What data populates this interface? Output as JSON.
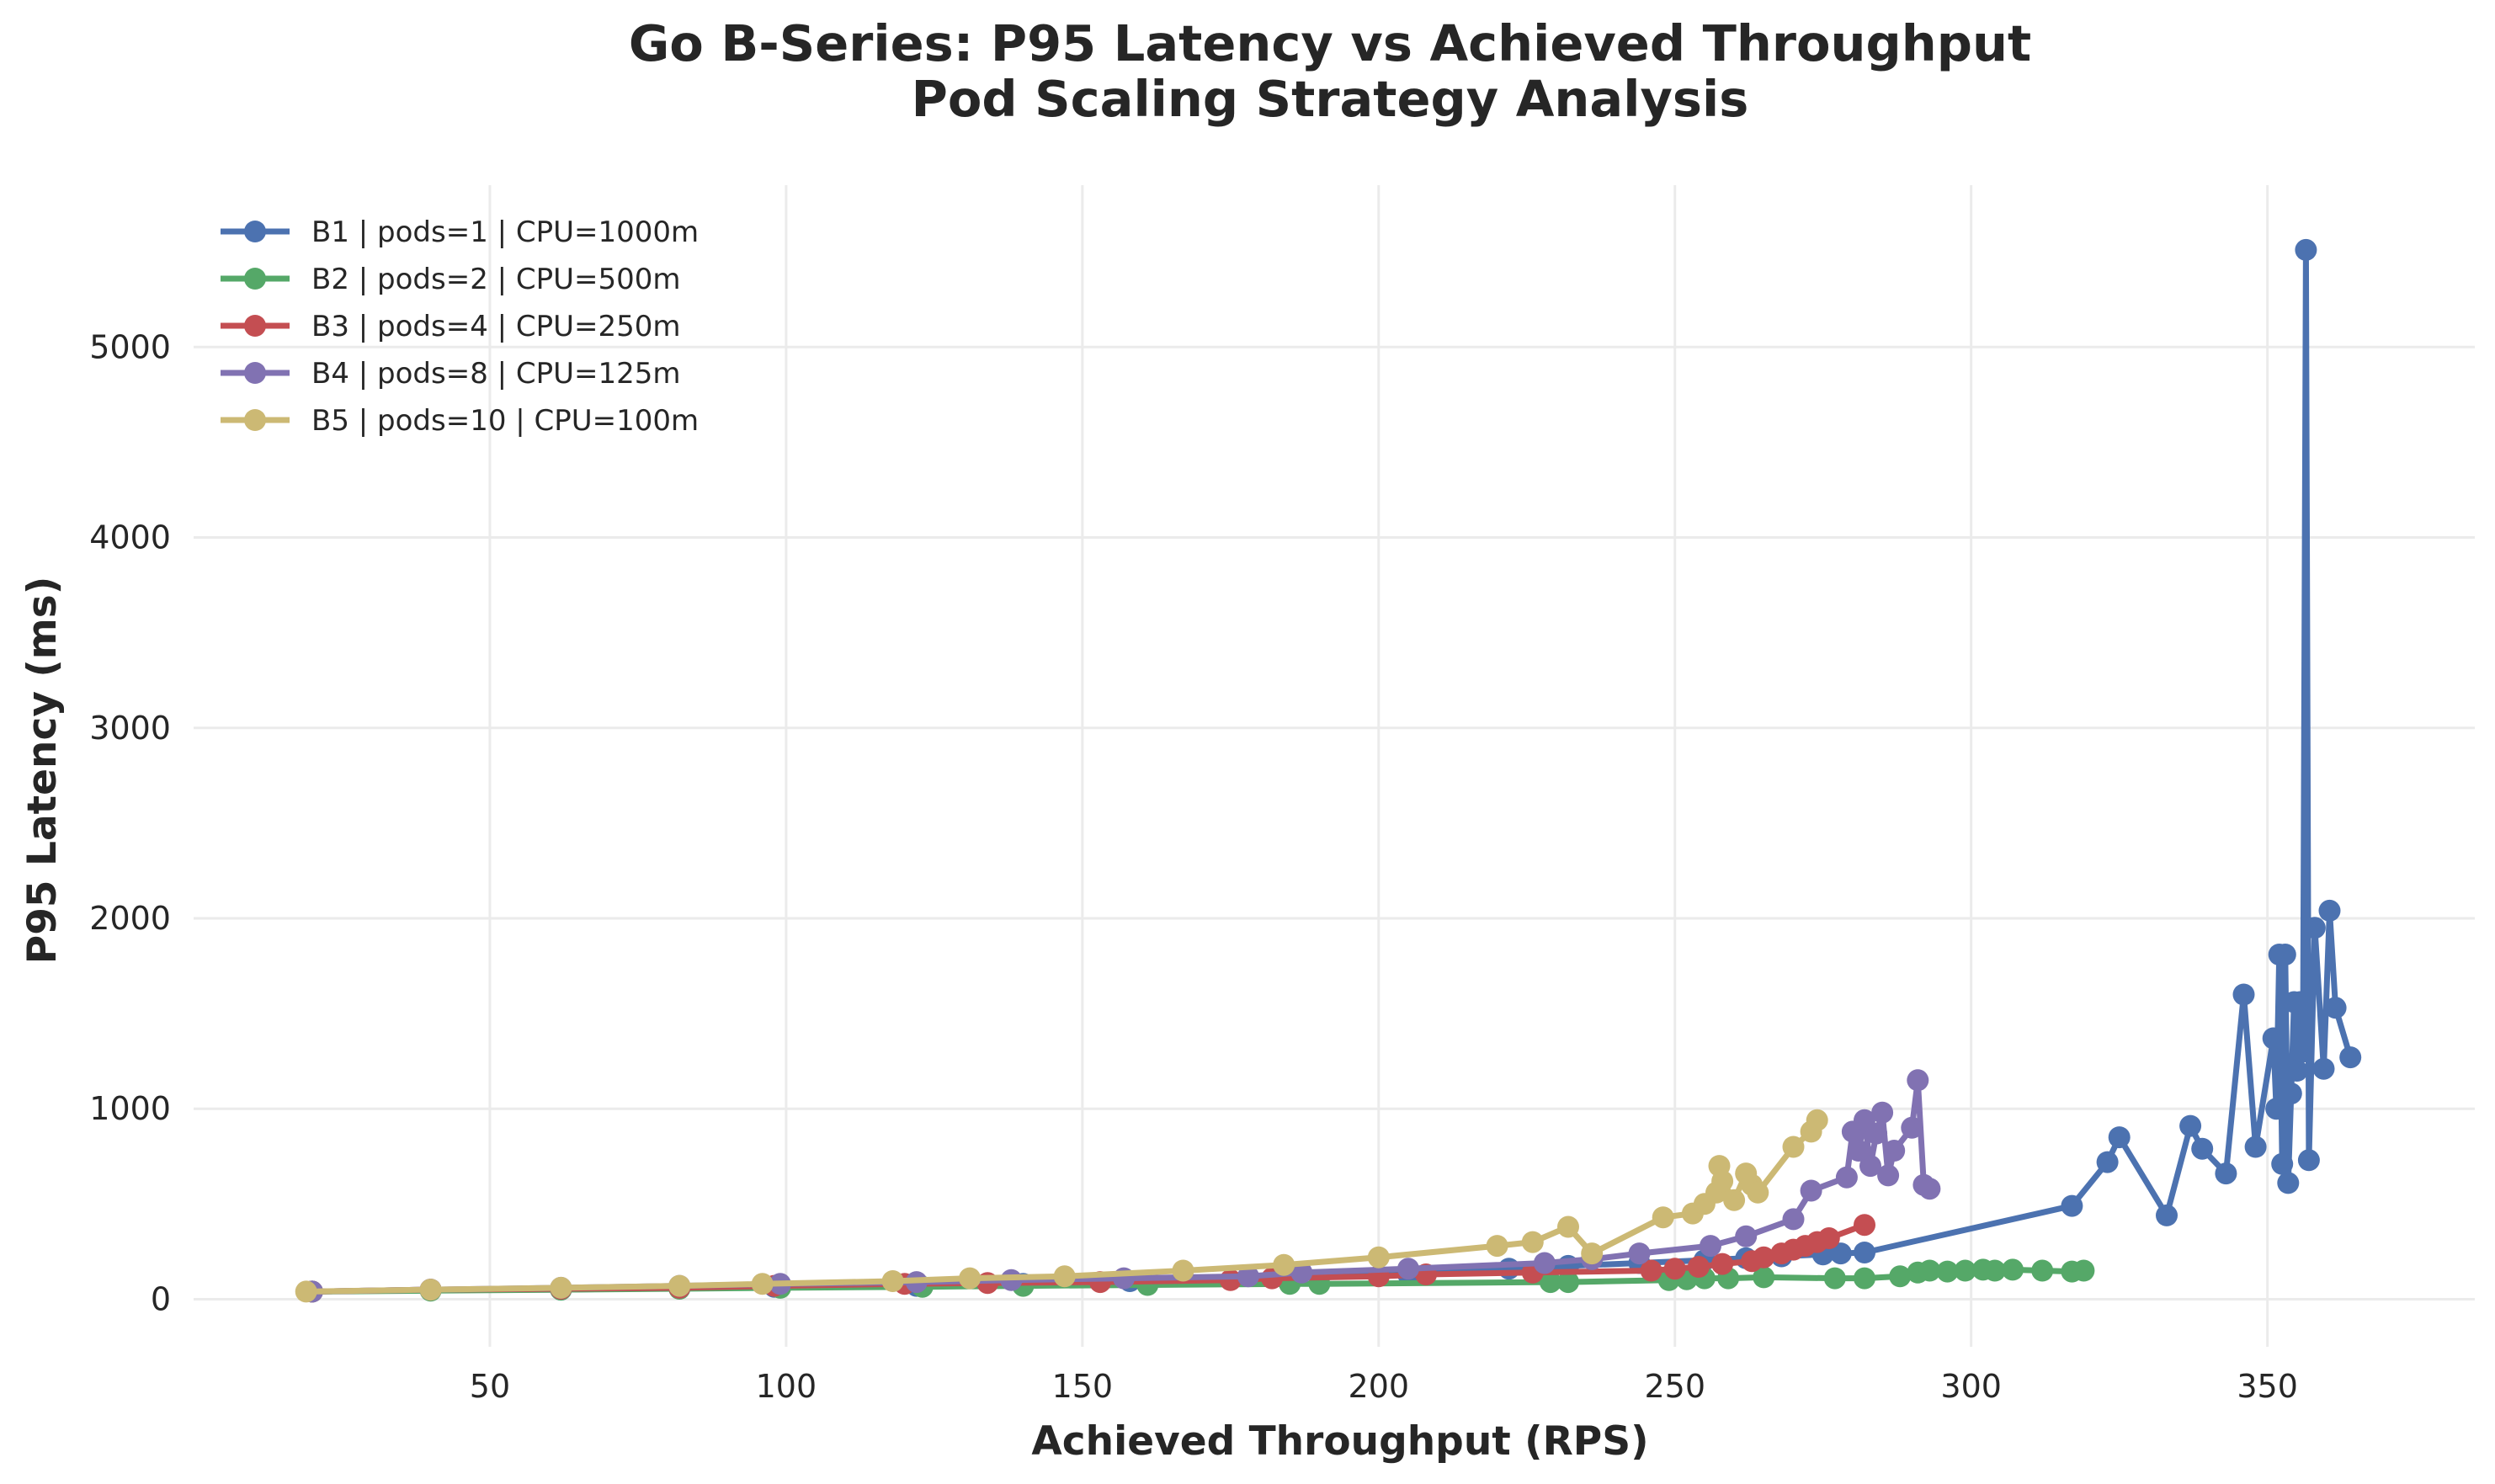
{
  "chart_data": {
    "type": "line",
    "title": "Go B-Series: P95 Latency vs Achieved Throughput",
    "subtitle": "Pod Scaling Strategy Analysis",
    "xlabel": "Achieved Throughput (RPS)",
    "ylabel": "P95 Latency (ms)",
    "xlim": [
      0,
      385
    ],
    "ylim": [
      -250,
      5850
    ],
    "xticks": [
      50,
      100,
      150,
      200,
      250,
      300,
      350
    ],
    "yticks": [
      0,
      1000,
      2000,
      3000,
      4000,
      5000
    ],
    "grid": true,
    "legend_position": "top-left",
    "series": [
      {
        "name": "B1 | pods=1 | CPU=1000m",
        "color": "#4C72B0",
        "points": [
          [
            20,
            40
          ],
          [
            40,
            50
          ],
          [
            62,
            50
          ],
          [
            82,
            60
          ],
          [
            98,
            65
          ],
          [
            122,
            70
          ],
          [
            140,
            80
          ],
          [
            158,
            95
          ],
          [
            185,
            110
          ],
          [
            205,
            130
          ],
          [
            222,
            160
          ],
          [
            232,
            175
          ],
          [
            244,
            190
          ],
          [
            255,
            205
          ],
          [
            262,
            215
          ],
          [
            268,
            225
          ],
          [
            275,
            235
          ],
          [
            278,
            240
          ],
          [
            282,
            245
          ],
          [
            317,
            490
          ],
          [
            323,
            720
          ],
          [
            325,
            850
          ],
          [
            333,
            440
          ],
          [
            337,
            910
          ],
          [
            339,
            790
          ],
          [
            343,
            660
          ],
          [
            346,
            1600
          ],
          [
            348,
            800
          ],
          [
            351,
            1370
          ],
          [
            351.5,
            1000
          ],
          [
            352,
            1810
          ],
          [
            352.5,
            710
          ],
          [
            353,
            1810
          ],
          [
            353.5,
            610
          ],
          [
            354,
            1080
          ],
          [
            354.5,
            1560
          ],
          [
            355,
            1200
          ],
          [
            355.5,
            1560
          ],
          [
            356,
            1300
          ],
          [
            356.5,
            5510
          ],
          [
            357,
            730
          ],
          [
            358,
            1950
          ],
          [
            359.5,
            1210
          ],
          [
            360.5,
            2040
          ],
          [
            361.5,
            1530
          ],
          [
            364,
            1270
          ]
        ]
      },
      {
        "name": "B2 | pods=2 | CPU=500m",
        "color": "#55A868",
        "points": [
          [
            20,
            40
          ],
          [
            40,
            45
          ],
          [
            62,
            50
          ],
          [
            82,
            55
          ],
          [
            99,
            60
          ],
          [
            123,
            65
          ],
          [
            140,
            70
          ],
          [
            161,
            75
          ],
          [
            185,
            80
          ],
          [
            190,
            80
          ],
          [
            229,
            90
          ],
          [
            232,
            90
          ],
          [
            249,
            100
          ],
          [
            252,
            105
          ],
          [
            255,
            110
          ],
          [
            259,
            110
          ],
          [
            265,
            115
          ],
          [
            277,
            110
          ],
          [
            282,
            110
          ],
          [
            288,
            120
          ],
          [
            291,
            140
          ],
          [
            293,
            150
          ],
          [
            296,
            145
          ],
          [
            299,
            150
          ],
          [
            302,
            155
          ],
          [
            304,
            150
          ],
          [
            307,
            155
          ],
          [
            312,
            150
          ],
          [
            317,
            145
          ],
          [
            319,
            150
          ]
        ]
      },
      {
        "name": "B3 | pods=4 | CPU=250m",
        "color": "#C44E52",
        "points": [
          [
            20,
            40
          ],
          [
            40,
            50
          ],
          [
            62,
            55
          ],
          [
            82,
            60
          ],
          [
            98,
            70
          ],
          [
            120,
            80
          ],
          [
            134,
            85
          ],
          [
            153,
            90
          ],
          [
            175,
            100
          ],
          [
            182,
            110
          ],
          [
            200,
            120
          ],
          [
            208,
            130
          ],
          [
            226,
            140
          ],
          [
            246,
            150
          ],
          [
            250,
            160
          ],
          [
            254,
            170
          ],
          [
            258,
            185
          ],
          [
            263,
            200
          ],
          [
            265,
            220
          ],
          [
            268,
            240
          ],
          [
            270,
            260
          ],
          [
            272,
            280
          ],
          [
            274,
            300
          ],
          [
            276,
            320
          ],
          [
            282,
            390
          ]
        ]
      },
      {
        "name": "B4 | pods=8 | CPU=125m",
        "color": "#8172B2",
        "points": [
          [
            20,
            40
          ],
          [
            40,
            50
          ],
          [
            62,
            60
          ],
          [
            82,
            70
          ],
          [
            99,
            80
          ],
          [
            122,
            90
          ],
          [
            138,
            100
          ],
          [
            157,
            110
          ],
          [
            178,
            120
          ],
          [
            187,
            140
          ],
          [
            205,
            160
          ],
          [
            228,
            190
          ],
          [
            236,
            210
          ],
          [
            244,
            240
          ],
          [
            256,
            280
          ],
          [
            262,
            330
          ],
          [
            270,
            420
          ],
          [
            273,
            570
          ],
          [
            279,
            640
          ],
          [
            280,
            880
          ],
          [
            281,
            780
          ],
          [
            282,
            940
          ],
          [
            283,
            700
          ],
          [
            284,
            870
          ],
          [
            285,
            980
          ],
          [
            286,
            650
          ],
          [
            287,
            780
          ],
          [
            290,
            900
          ],
          [
            291,
            1150
          ],
          [
            292,
            600
          ],
          [
            293,
            580
          ]
        ]
      },
      {
        "name": "B5 | pods=10 | CPU=100m",
        "color": "#CCB974",
        "points": [
          [
            19,
            40
          ],
          [
            40,
            50
          ],
          [
            62,
            60
          ],
          [
            82,
            70
          ],
          [
            96,
            80
          ],
          [
            118,
            95
          ],
          [
            131,
            110
          ],
          [
            147,
            120
          ],
          [
            167,
            150
          ],
          [
            184,
            180
          ],
          [
            200,
            220
          ],
          [
            220,
            280
          ],
          [
            226,
            300
          ],
          [
            232,
            380
          ],
          [
            236,
            240
          ],
          [
            248,
            430
          ],
          [
            253,
            450
          ],
          [
            255,
            500
          ],
          [
            257,
            560
          ],
          [
            257.5,
            700
          ],
          [
            258,
            620
          ],
          [
            260,
            520
          ],
          [
            262,
            660
          ],
          [
            263,
            600
          ],
          [
            264,
            560
          ],
          [
            270,
            800
          ],
          [
            273,
            880
          ],
          [
            274,
            940
          ]
        ]
      }
    ]
  }
}
